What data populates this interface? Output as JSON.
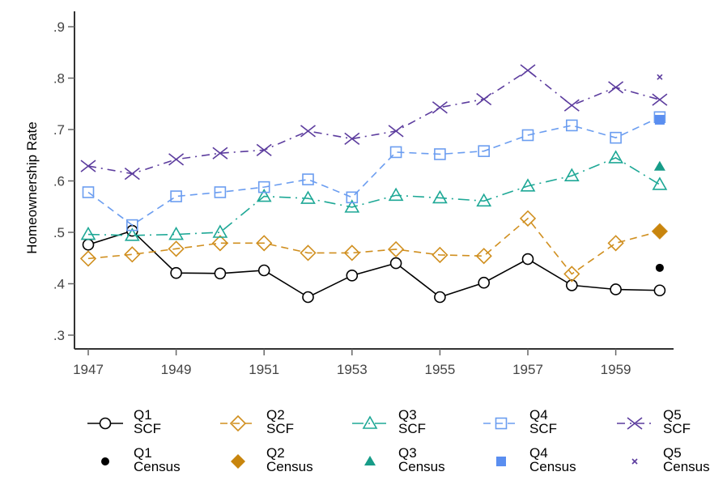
{
  "chart_data": {
    "type": "line",
    "title": "",
    "xlabel": "",
    "ylabel": "Homeownership Rate",
    "ylim": [
      0.3,
      0.9
    ],
    "xlim": [
      1947,
      1960
    ],
    "yticks": [
      0.3,
      0.4,
      0.5,
      0.6,
      0.7,
      0.8,
      0.9
    ],
    "ytick_labels": [
      ".3",
      ".4",
      ".5",
      ".6",
      ".7",
      ".8",
      ".9"
    ],
    "xticks": [
      1947,
      1949,
      1951,
      1953,
      1955,
      1957,
      1959
    ],
    "xtick_labels": [
      "1947",
      "1949",
      "1951",
      "1953",
      "1955",
      "1957",
      "1959"
    ],
    "grid": false,
    "legend_placement": "bottom",
    "x": [
      1947,
      1948,
      1949,
      1950,
      1951,
      1952,
      1953,
      1954,
      1955,
      1956,
      1957,
      1958,
      1959,
      1960
    ],
    "series": [
      {
        "name": "Q1 SCF",
        "label_line1": "Q1",
        "label_line2": "SCF",
        "color": "#000000",
        "marker": "circle-open",
        "dash": "solid",
        "values": [
          0.476,
          0.503,
          0.421,
          0.42,
          0.426,
          0.374,
          0.416,
          0.44,
          0.374,
          0.402,
          0.448,
          0.397,
          0.389,
          0.387
        ]
      },
      {
        "name": "Q2 SCF",
        "label_line1": "Q2",
        "label_line2": "SCF",
        "color": "#d08f1f",
        "marker": "diamond-open",
        "dash": "dash",
        "values": [
          0.449,
          0.457,
          0.468,
          0.479,
          0.479,
          0.46,
          0.46,
          0.467,
          0.456,
          0.454,
          0.527,
          0.419,
          0.479,
          0.502
        ]
      },
      {
        "name": "Q3 SCF",
        "label_line1": "Q3",
        "label_line2": "SCF",
        "color": "#1ea896",
        "marker": "triangle-open",
        "dash": "longdashdot",
        "values": [
          0.496,
          0.494,
          0.496,
          0.5,
          0.57,
          0.566,
          0.549,
          0.572,
          0.567,
          0.561,
          0.59,
          0.61,
          0.645,
          0.593
        ]
      },
      {
        "name": "Q4 SCF",
        "label_line1": "Q4",
        "label_line2": "SCF",
        "color": "#6b9df0",
        "marker": "square-open",
        "dash": "dash",
        "values": [
          0.578,
          0.514,
          0.57,
          0.578,
          0.588,
          0.603,
          0.568,
          0.656,
          0.652,
          0.658,
          0.689,
          0.708,
          0.684,
          0.724
        ]
      },
      {
        "name": "Q5 SCF",
        "label_line1": "Q5",
        "label_line2": "SCF",
        "color": "#5c3c9e",
        "marker": "x",
        "dash": "dashdot",
        "values": [
          0.629,
          0.614,
          0.642,
          0.654,
          0.66,
          0.697,
          0.682,
          0.697,
          0.743,
          0.759,
          0.815,
          0.747,
          0.782,
          0.758
        ]
      }
    ],
    "census": [
      {
        "name": "Q1 Census",
        "label_line1": "Q1",
        "label_line2": "Census",
        "color": "#000000",
        "marker": "circle-filled",
        "x": 1960,
        "value": 0.431
      },
      {
        "name": "Q2 Census",
        "label_line1": "Q2",
        "label_line2": "Census",
        "color": "#c8850d",
        "marker": "diamond-filled",
        "x": 1960,
        "value": 0.502
      },
      {
        "name": "Q3 Census",
        "label_line1": "Q3",
        "label_line2": "Census",
        "color": "#179c88",
        "marker": "triangle-filled",
        "x": 1960,
        "value": 0.628
      },
      {
        "name": "Q4 Census",
        "label_line1": "Q4",
        "label_line2": "Census",
        "color": "#5a8ef0",
        "marker": "square-filled",
        "x": 1960,
        "value": 0.719
      },
      {
        "name": "Q5 Census",
        "label_line1": "Q5",
        "label_line2": "Census",
        "color": "#5c3c9e",
        "marker": "x-small",
        "x": 1960,
        "value": 0.802
      }
    ]
  }
}
